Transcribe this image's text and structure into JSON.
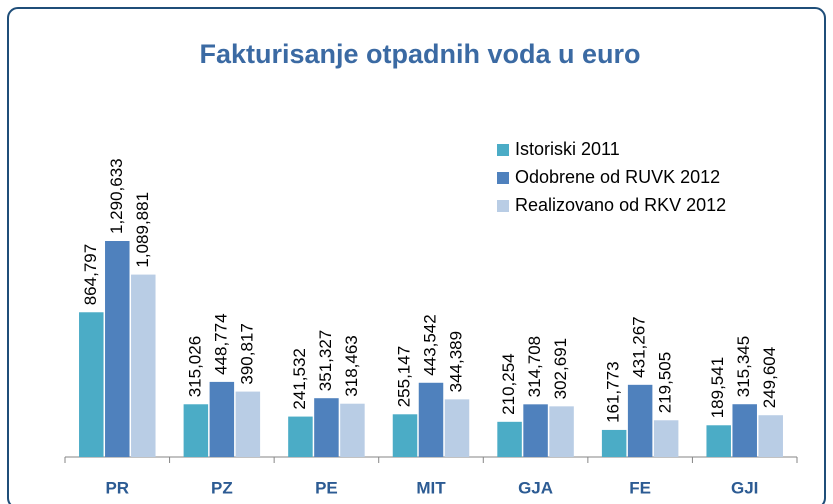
{
  "chart_data": {
    "type": "bar",
    "title": "Fakturisanje otpadnih voda u euro",
    "categories": [
      "PR",
      "PZ",
      "PE",
      "MIT",
      "GJA",
      "FE",
      "GJI"
    ],
    "series": [
      {
        "name": "Istoriski 2011",
        "color": "#4bacc6",
        "values": [
          864797,
          315026,
          241532,
          255147,
          210254,
          161773,
          189541
        ],
        "value_labels": [
          "864,797",
          "315,026",
          "241,532",
          "255,147",
          "210,254",
          "161,773",
          "189,541"
        ]
      },
      {
        "name": "Odobrene od RUVK 2012",
        "color": "#4f81bd",
        "values": [
          1290633,
          448774,
          351327,
          443542,
          314708,
          431267,
          315345
        ],
        "value_labels": [
          "1,290,633",
          "448,774",
          "351,327",
          "443,542",
          "314,708",
          "431,267",
          "315,345"
        ]
      },
      {
        "name": "Realizovano od RKV 2012",
        "color": "#b9cde5",
        "values": [
          1089881,
          390817,
          318463,
          344389,
          302691,
          219505,
          249604
        ],
        "value_labels": [
          "1,089,881",
          "390,817",
          "318,463",
          "344,389",
          "302,691",
          "219,505",
          "249,604"
        ]
      }
    ],
    "legend": "top-right"
  }
}
